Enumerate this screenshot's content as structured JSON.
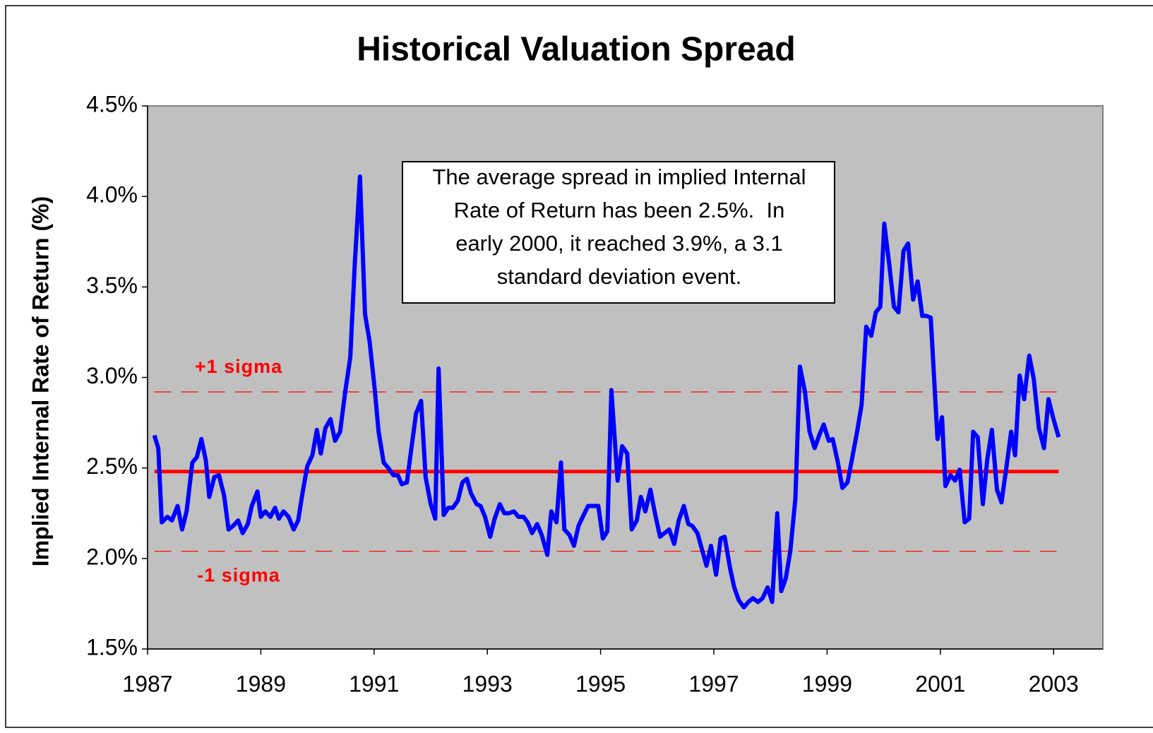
{
  "chart_data": {
    "type": "line",
    "title": "Historical Valuation Spread",
    "ylabel": "Implied Internal Rate of Return (%)",
    "color": "#0000ff",
    "x": [
      1987.12,
      1987.19,
      1987.25,
      1987.35,
      1987.43,
      1987.53,
      1987.61,
      1987.69,
      1987.79,
      1987.87,
      1987.95,
      1988.03,
      1988.09,
      1988.18,
      1988.26,
      1988.35,
      1988.43,
      1988.51,
      1988.6,
      1988.68,
      1988.77,
      1988.84,
      1988.94,
      1989.0,
      1989.08,
      1989.17,
      1989.25,
      1989.32,
      1989.4,
      1989.49,
      1989.58,
      1989.66,
      1989.74,
      1989.82,
      1989.91,
      1989.99,
      1990.06,
      1990.14,
      1990.23,
      1990.31,
      1990.4,
      1990.49,
      1990.58,
      1990.66,
      1990.75,
      1990.84,
      1990.92,
      1991.01,
      1991.08,
      1991.17,
      1991.25,
      1991.34,
      1991.42,
      1991.49,
      1991.58,
      1991.66,
      1991.74,
      1991.83,
      1991.91,
      1992.0,
      1992.08,
      1992.14,
      1992.23,
      1992.31,
      1992.39,
      1992.48,
      1992.56,
      1992.64,
      1992.71,
      1992.81,
      1992.88,
      1992.96,
      1993.05,
      1993.13,
      1993.22,
      1993.3,
      1993.38,
      1993.47,
      1993.55,
      1993.64,
      1993.71,
      1993.79,
      1993.88,
      1993.96,
      1994.06,
      1994.13,
      1994.22,
      1994.3,
      1994.36,
      1994.45,
      1994.53,
      1994.61,
      1994.7,
      1994.78,
      1994.86,
      1994.96,
      1995.04,
      1995.12,
      1995.19,
      1995.3,
      1995.38,
      1995.47,
      1995.55,
      1995.64,
      1995.71,
      1995.79,
      1995.88,
      1995.96,
      1996.05,
      1996.13,
      1996.21,
      1996.3,
      1996.38,
      1996.47,
      1996.55,
      1996.62,
      1996.71,
      1996.79,
      1996.87,
      1996.95,
      1997.04,
      1997.12,
      1997.19,
      1997.29,
      1997.36,
      1997.44,
      1997.53,
      1997.61,
      1997.69,
      1997.78,
      1997.86,
      1997.95,
      1998.03,
      1998.12,
      1998.19,
      1998.27,
      1998.35,
      1998.44,
      1998.52,
      1998.61,
      1998.69,
      1998.78,
      1998.86,
      1998.94,
      1999.03,
      1999.1,
      1999.19,
      1999.27,
      1999.36,
      1999.44,
      1999.53,
      1999.61,
      1999.69,
      1999.78,
      1999.86,
      1999.94,
      2000.01,
      2000.1,
      2000.18,
      2000.26,
      2000.35,
      2000.43,
      2000.52,
      2000.6,
      2000.68,
      2000.75,
      2000.83,
      2000.95,
      2001.03,
      2001.09,
      2001.18,
      2001.26,
      2001.34,
      2001.43,
      2001.51,
      2001.58,
      2001.66,
      2001.75,
      2001.83,
      2001.91,
      2002.0,
      2002.08,
      2002.16,
      2002.25,
      2002.32,
      2002.4,
      2002.48,
      2002.57,
      2002.65,
      2002.74,
      2002.83,
      2002.91,
      2002.99,
      2003.09
    ],
    "values": [
      2.68,
      2.61,
      2.2,
      2.23,
      2.21,
      2.29,
      2.16,
      2.26,
      2.53,
      2.56,
      2.66,
      2.54,
      2.34,
      2.45,
      2.46,
      2.35,
      2.16,
      2.18,
      2.21,
      2.14,
      2.19,
      2.29,
      2.37,
      2.23,
      2.26,
      2.23,
      2.28,
      2.22,
      2.26,
      2.23,
      2.16,
      2.21,
      2.37,
      2.51,
      2.57,
      2.71,
      2.58,
      2.72,
      2.77,
      2.65,
      2.7,
      2.92,
      3.11,
      3.63,
      4.11,
      3.35,
      3.2,
      2.94,
      2.7,
      2.53,
      2.5,
      2.46,
      2.46,
      2.41,
      2.42,
      2.61,
      2.8,
      2.87,
      2.45,
      2.3,
      2.22,
      3.05,
      2.24,
      2.28,
      2.28,
      2.32,
      2.42,
      2.44,
      2.36,
      2.3,
      2.29,
      2.23,
      2.12,
      2.22,
      2.3,
      2.25,
      2.25,
      2.26,
      2.23,
      2.23,
      2.2,
      2.14,
      2.19,
      2.13,
      2.02,
      2.26,
      2.2,
      2.53,
      2.16,
      2.13,
      2.07,
      2.18,
      2.24,
      2.29,
      2.29,
      2.29,
      2.11,
      2.15,
      2.93,
      2.43,
      2.62,
      2.58,
      2.16,
      2.21,
      2.34,
      2.26,
      2.38,
      2.25,
      2.12,
      2.14,
      2.16,
      2.08,
      2.21,
      2.29,
      2.19,
      2.18,
      2.14,
      2.05,
      1.96,
      2.07,
      1.91,
      2.11,
      2.12,
      1.94,
      1.84,
      1.77,
      1.73,
      1.76,
      1.78,
      1.76,
      1.78,
      1.84,
      1.76,
      2.25,
      1.82,
      1.89,
      2.04,
      2.33,
      3.06,
      2.92,
      2.7,
      2.61,
      2.68,
      2.74,
      2.65,
      2.66,
      2.53,
      2.39,
      2.42,
      2.55,
      2.7,
      2.85,
      3.28,
      3.23,
      3.36,
      3.39,
      3.85,
      3.62,
      3.39,
      3.36,
      3.7,
      3.74,
      3.43,
      3.53,
      3.34,
      3.34,
      3.33,
      2.66,
      2.78,
      2.4,
      2.46,
      2.43,
      2.49,
      2.2,
      2.22,
      2.7,
      2.67,
      2.3,
      2.55,
      2.71,
      2.38,
      2.31,
      2.49,
      2.7,
      2.57,
      3.01,
      2.88,
      3.12,
      2.99,
      2.72,
      2.61,
      2.88,
      2.78,
      2.67
    ],
    "xlim": [
      1987,
      2003.87
    ],
    "xticks": [
      1987,
      1989,
      1991,
      1993,
      1995,
      1997,
      1999,
      2001,
      2003
    ],
    "ylim": [
      1.5,
      4.5
    ],
    "yticks": [
      {
        "value": 1.5,
        "label": "1.5%"
      },
      {
        "value": 2.0,
        "label": "2.0%"
      },
      {
        "value": 2.5,
        "label": "2.5%"
      },
      {
        "value": 3.0,
        "label": "3.0%"
      },
      {
        "value": 3.5,
        "label": "3.5%"
      },
      {
        "value": 4.0,
        "label": "4.0%"
      },
      {
        "value": 4.5,
        "label": "4.5%"
      }
    ],
    "grid": false,
    "reference_lines": [
      {
        "value": 2.48,
        "color": "#ff0000",
        "style": "solid"
      },
      {
        "value": 2.92,
        "color": "#ff0000",
        "style": "dashed",
        "label": "+1 sigma"
      },
      {
        "value": 2.04,
        "color": "#ff0000",
        "style": "dashed",
        "label": "-1 sigma"
      }
    ],
    "annotation": [
      "The average spread in implied Internal",
      "Rate of Return has been 2.5%.  In",
      "early 2000, it reached 3.9%, a 3.1",
      "standard deviation event."
    ]
  }
}
